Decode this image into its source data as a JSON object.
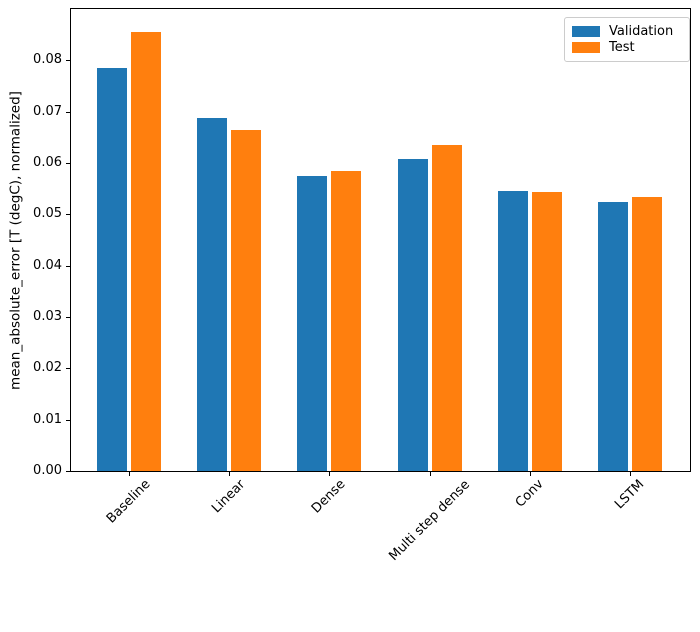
{
  "chart_data": {
    "type": "bar",
    "title": "",
    "xlabel": "",
    "ylabel": "mean_absolute_error [T (degC), normalized]",
    "categories": [
      "Baseline",
      "Linear",
      "Dense",
      "Multi step dense",
      "Conv",
      "LSTM"
    ],
    "series": [
      {
        "name": "Validation",
        "color": "#1f77b4",
        "values": [
          0.0785,
          0.0688,
          0.0575,
          0.0607,
          0.0546,
          0.0524
        ]
      },
      {
        "name": "Test",
        "color": "#ff7f0e",
        "values": [
          0.0855,
          0.0664,
          0.0585,
          0.0635,
          0.0543,
          0.0534
        ]
      }
    ],
    "ylim": [
      0.0,
      0.09
    ],
    "yticks": [
      "0.00",
      "0.01",
      "0.02",
      "0.03",
      "0.04",
      "0.05",
      "0.06",
      "0.07",
      "0.08"
    ],
    "xtick_rotation_deg": 45,
    "legend_position": "upper right",
    "grid": false,
    "background": "#ffffff",
    "spine_color": "#000000"
  }
}
